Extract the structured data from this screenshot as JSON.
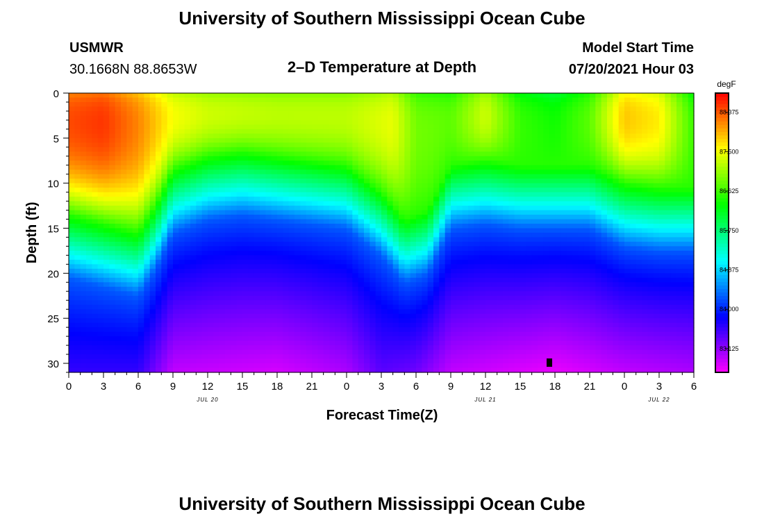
{
  "header": {
    "title": "University of Southern Mississippi Ocean Cube",
    "station": "USMWR",
    "location": "30.1668N  88.8653W",
    "subtitle": "2–D Temperature at Depth",
    "model_label": "Model Start Time",
    "model_time": "07/20/2021 Hour 03"
  },
  "footer": {
    "title": "University of Southern Mississippi Ocean Cube"
  },
  "chart_data": {
    "type": "heatmap",
    "title": "2–D Temperature at Depth",
    "xlabel": "Forecast Time(Z)",
    "ylabel": "Depth (ft)",
    "x_range_hours": [
      0,
      54
    ],
    "y_range_ft": [
      0,
      31
    ],
    "x_ticks": [
      {
        "h": 0,
        "label": "0"
      },
      {
        "h": 3,
        "label": "3"
      },
      {
        "h": 6,
        "label": "6"
      },
      {
        "h": 9,
        "label": "9"
      },
      {
        "h": 12,
        "label": "12"
      },
      {
        "h": 15,
        "label": "15"
      },
      {
        "h": 18,
        "label": "18"
      },
      {
        "h": 21,
        "label": "21"
      },
      {
        "h": 24,
        "label": "0"
      },
      {
        "h": 27,
        "label": "3"
      },
      {
        "h": 30,
        "label": "6"
      },
      {
        "h": 33,
        "label": "9"
      },
      {
        "h": 36,
        "label": "12"
      },
      {
        "h": 39,
        "label": "15"
      },
      {
        "h": 42,
        "label": "18"
      },
      {
        "h": 45,
        "label": "21"
      },
      {
        "h": 48,
        "label": "0"
      },
      {
        "h": 51,
        "label": "3"
      },
      {
        "h": 54,
        "label": "6"
      }
    ],
    "date_labels": [
      {
        "h": 12,
        "label": "JUL 20"
      },
      {
        "h": 36,
        "label": "JUL 21"
      },
      {
        "h": 51,
        "label": "JUL 22"
      }
    ],
    "y_ticks": [
      0,
      5,
      10,
      15,
      20,
      25,
      30
    ],
    "colorbar": {
      "unit": "degF",
      "min": 82.6,
      "max": 88.8,
      "ticks": [
        88.375,
        87.5,
        86.625,
        85.75,
        84.875,
        84.0,
        83.125
      ],
      "tick_labels": [
        "88.375",
        "87.500",
        "86.625",
        "85.750",
        "84.875",
        "84.000",
        "83.125"
      ]
    },
    "thermocline_depth_ft": [
      {
        "h": 0,
        "d": 13.5
      },
      {
        "h": 3,
        "d": 14.5
      },
      {
        "h": 6,
        "d": 15.5
      },
      {
        "h": 7.5,
        "d": 12.5
      },
      {
        "h": 9,
        "d": 8.5
      },
      {
        "h": 12,
        "d": 7.0
      },
      {
        "h": 15,
        "d": 6.5
      },
      {
        "h": 18,
        "d": 7.0
      },
      {
        "h": 21,
        "d": 7.5
      },
      {
        "h": 24,
        "d": 8.0
      },
      {
        "h": 27,
        "d": 11.0
      },
      {
        "h": 29,
        "d": 14.0
      },
      {
        "h": 31,
        "d": 13.0
      },
      {
        "h": 33,
        "d": 8.0
      },
      {
        "h": 36,
        "d": 7.5
      },
      {
        "h": 39,
        "d": 8.0
      },
      {
        "h": 42,
        "d": 8.0
      },
      {
        "h": 45,
        "d": 8.0
      },
      {
        "h": 48,
        "d": 10.0
      },
      {
        "h": 51,
        "d": 10.5
      },
      {
        "h": 54,
        "d": 10.5
      }
    ],
    "surface_temp_degF": [
      {
        "h": 0,
        "t": 88.5
      },
      {
        "h": 3,
        "t": 88.6
      },
      {
        "h": 6,
        "t": 88.2
      },
      {
        "h": 9,
        "t": 87.6
      },
      {
        "h": 12,
        "t": 87.4
      },
      {
        "h": 18,
        "t": 87.3
      },
      {
        "h": 24,
        "t": 87.3
      },
      {
        "h": 28,
        "t": 87.5
      },
      {
        "h": 30,
        "t": 86.9
      },
      {
        "h": 33,
        "t": 86.8
      },
      {
        "h": 36,
        "t": 87.4
      },
      {
        "h": 39,
        "t": 86.6
      },
      {
        "h": 42,
        "t": 86.4
      },
      {
        "h": 45,
        "t": 86.8
      },
      {
        "h": 48,
        "t": 87.9
      },
      {
        "h": 51,
        "t": 87.7
      },
      {
        "h": 54,
        "t": 86.6
      }
    ],
    "bottom_temp_degF": [
      {
        "h": 0,
        "t": 83.6
      },
      {
        "h": 6,
        "t": 83.6
      },
      {
        "h": 9,
        "t": 82.9
      },
      {
        "h": 18,
        "t": 82.8
      },
      {
        "h": 24,
        "t": 83.0
      },
      {
        "h": 27,
        "t": 83.4
      },
      {
        "h": 30,
        "t": 83.3
      },
      {
        "h": 33,
        "t": 82.9
      },
      {
        "h": 42,
        "t": 82.7
      },
      {
        "h": 48,
        "t": 82.9
      },
      {
        "h": 54,
        "t": 83.0
      }
    ],
    "deep_layer_temp_degF": 84.3
  }
}
